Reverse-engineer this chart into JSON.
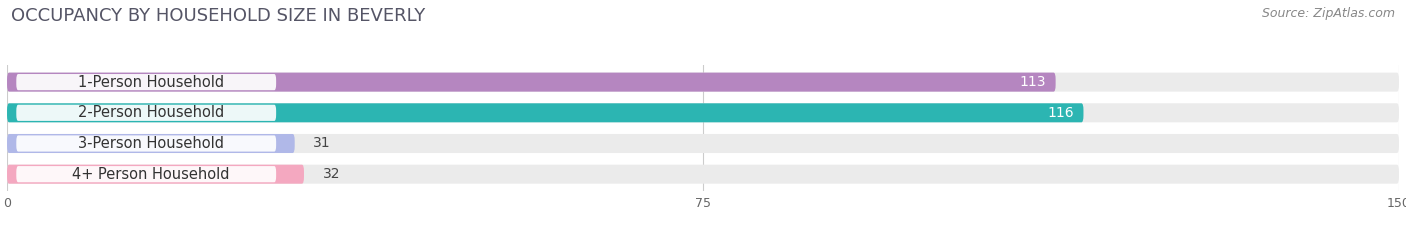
{
  "title": "OCCUPANCY BY HOUSEHOLD SIZE IN BEVERLY",
  "source": "Source: ZipAtlas.com",
  "categories": [
    "1-Person Household",
    "2-Person Household",
    "3-Person Household",
    "4+ Person Household"
  ],
  "values": [
    113,
    116,
    31,
    32
  ],
  "bar_colors": [
    "#b586c0",
    "#2cb5b2",
    "#b0b8e8",
    "#f4a8c0"
  ],
  "label_colors_inside": [
    "white",
    "white",
    "black",
    "black"
  ],
  "xlim": [
    0,
    150
  ],
  "xticks": [
    0,
    75,
    150
  ],
  "background_color": "#ffffff",
  "bar_background_color": "#ebebeb",
  "title_fontsize": 13,
  "source_fontsize": 9,
  "bar_height": 0.62,
  "label_fontsize": 10,
  "category_fontsize": 10.5
}
